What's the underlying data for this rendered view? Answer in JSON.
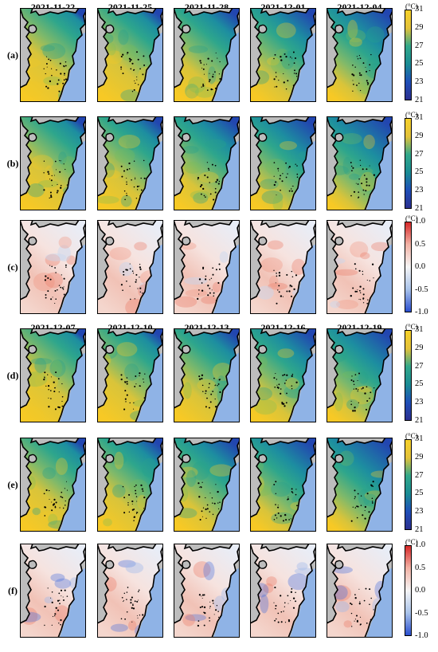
{
  "chart_data": {
    "type": "heatmap",
    "panel_groups": [
      {
        "dates": [
          "2021-11-22",
          "2021-11-25",
          "2021-11-28",
          "2021-12-01",
          "2021-12-04"
        ],
        "rows": [
          {
            "label": "(a)",
            "kind": "sst"
          },
          {
            "label": "(b)",
            "kind": "sst"
          },
          {
            "label": "(c)",
            "kind": "diff"
          }
        ]
      },
      {
        "dates": [
          "2021-12-07",
          "2021-12-10",
          "2021-12-13",
          "2021-12-16",
          "2021-12-19"
        ],
        "rows": [
          {
            "label": "(d)",
            "kind": "sst"
          },
          {
            "label": "(e)",
            "kind": "sst"
          },
          {
            "label": "(f)",
            "kind": "diff"
          }
        ]
      }
    ],
    "colorbars": {
      "sst": {
        "unit": "(°C)",
        "ticks": [
          "31",
          "29",
          "27",
          "25",
          "23",
          "21"
        ],
        "range": [
          21,
          31
        ],
        "colors": [
          "#f6d12a",
          "#e3c23a",
          "#32a88a",
          "#1a8c93",
          "#1f4fb8",
          "#2b2f8f"
        ]
      },
      "diff": {
        "unit": "(°C)",
        "ticks": [
          "1.0",
          "0.5",
          "0.0",
          "-0.5",
          "-1.0"
        ],
        "range": [
          -1.0,
          1.0
        ],
        "colors": [
          "#d62828",
          "#f2b3a6",
          "#f5f5f5",
          "#a9c3ea",
          "#2a4fd0"
        ]
      }
    },
    "map_colors": {
      "land": "#bdbdbd",
      "ocean_outside": "#8fb3e6",
      "coast": "#000000"
    }
  }
}
